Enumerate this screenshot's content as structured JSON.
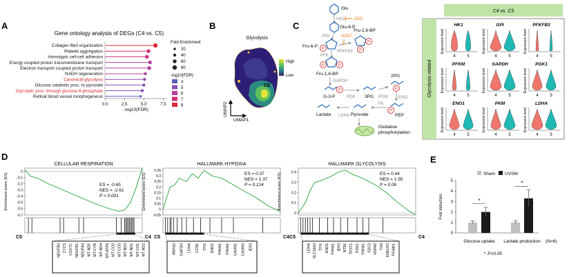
{
  "panels": {
    "A": {
      "letter": "A",
      "title": "Gene ontology analysis of DEGs (C4 vs. C5)",
      "terms": [
        {
          "label": "Collagen fibril organization",
          "value": 6.5,
          "size": 80,
          "fdr": 8,
          "highlight": false
        },
        {
          "label": "Platelet aggregation",
          "value": 5.6,
          "size": 60,
          "fdr": 7,
          "highlight": false
        },
        {
          "label": "Homotypic cell-cell adhesion",
          "value": 5.4,
          "size": 60,
          "fdr": 7,
          "highlight": false
        },
        {
          "label": "Energy coupled proton transmembrane transport",
          "value": 5.8,
          "size": 60,
          "fdr": 6,
          "highlight": false
        },
        {
          "label": "Electron transport coupled proton transport",
          "value": 5.7,
          "size": 60,
          "fdr": 6,
          "highlight": false
        },
        {
          "label": "NADH regeneration",
          "value": 5.2,
          "size": 40,
          "fdr": 6,
          "highlight": false
        },
        {
          "label": "Canonical glycolysis",
          "value": 5.1,
          "size": 40,
          "fdr": 5,
          "highlight": true
        },
        {
          "label": "Glucose catabolic proc. to pyruvate",
          "value": 5.0,
          "size": 40,
          "fdr": 5,
          "highlight": false
        },
        {
          "label": "Glycolytic proc. through glucose-6-phosphate",
          "value": 4.8,
          "size": 40,
          "fdr": 5,
          "highlight": true
        },
        {
          "label": "Retinal blood vessel morphogenesis",
          "value": 4.6,
          "size": 20,
          "fdr": 4,
          "highlight": false
        }
      ],
      "xaxis": {
        "label": "-log10(FDR)",
        "ticks": [
          "0.0",
          "2.5",
          "5.0",
          "7.5"
        ],
        "max": 8.0
      },
      "legend_size_title": "Fold Enrichment",
      "legend_sizes": [
        "20",
        "40",
        "60",
        "80"
      ],
      "legend_color_title": "-log10(FDR)",
      "legend_colors": [
        {
          "label": "4",
          "color": "#5b5fb8"
        },
        {
          "label": "5",
          "color": "#8a4fb2"
        },
        {
          "label": "6",
          "color": "#b3409e"
        },
        {
          "label": "7",
          "color": "#cf2f7a"
        },
        {
          "label": "8",
          "color": "#d92a3a"
        }
      ]
    },
    "B": {
      "letter": "B",
      "title": "Glycolysis",
      "legend_high": "High",
      "legend_low": "Low",
      "cluster_label": "C5",
      "axis_x": "UMAP1",
      "axis_y": "UMAP2"
    },
    "C": {
      "letter": "C",
      "metabolites": {
        "glu": "Glu",
        "glu6p": "Glu-6-P",
        "fru6p": "Fru-6-P",
        "fru26bp": "Fru-2,6-BP",
        "fru16bp": "Fru-1,6-BP",
        "g3p": "G-3-P",
        "p3pg": "3PG",
        "p2pg": "2PG",
        "pep": "PEP",
        "pyruvate": "Pyruvate",
        "lactate": "Lactate",
        "oxphos1": "Oxidative",
        "oxphos2": "phosphorylation"
      },
      "enzymes": {
        "hk1": "HK1",
        "tdg": "2DG",
        "az67": "AZ67",
        "pgi": "PGI",
        "pfk": "PFK",
        "pfkfb3": "PFKFB3",
        "gapdh": "GAPDH",
        "pgk": "PGK",
        "pgm": "PGM",
        "eno": "ENO",
        "pk": "PK",
        "ldha": "LDHA"
      },
      "phosphate": "P"
    },
    "violin": {
      "header": "C4 vs. C5",
      "side_label": "Glycolysis related",
      "ylabel": "Expression level",
      "groups": [
        "4",
        "5"
      ],
      "genes": [
        "HK1",
        "GPI",
        "PFKFB3",
        "PFKM",
        "GAPDH",
        "PGK1",
        "ENO1",
        "PKM",
        "LDHA"
      ],
      "colors": {
        "c4": "#f0766c",
        "c5": "#1fb9b3"
      }
    },
    "D": {
      "letter": "D",
      "ylabel": "Enrichment score (ES)",
      "left_label": "C5",
      "right_label": "C4",
      "plots": [
        {
          "title": "CELLULAR RESPIRATION",
          "es": "ES = -0.65",
          "nes": "NES = -2.61",
          "p": "P < 0.001",
          "yticks": [
            "0",
            "-0.1",
            "-0.2",
            "-0.3",
            "-0.4",
            "-0.5",
            "-0.6",
            "-0.7"
          ],
          "genes": [
            "NDUFB3",
            "CYCS",
            "COX7C",
            "NDUFB1",
            "NDUFA4",
            "MT-ND5",
            "MT-CYB",
            "MT-ND4",
            "MT-ATP8",
            "MT-CO2",
            "MT-CO3",
            "MT-ND3",
            "MT-ND1",
            "MT-CO1",
            "MT-ND2"
          ]
        },
        {
          "title": "HALLMARK HYPOXIA",
          "es": "ES = 0.37",
          "nes": "NES = 1.37",
          "p": "P = 0.124",
          "yticks": [
            "0.35",
            "0.3",
            "0.25",
            "0.2",
            "0.15",
            "0.1",
            "0.05",
            "0",
            "-0.05"
          ],
          "genes": [
            "ANXA2",
            "GAPDH",
            "LDHA",
            "CCN1",
            "TPI1",
            "ENO1",
            "P4HA1",
            "P4HA1",
            "CAVIN1",
            "CAVIN3",
            "IER3"
          ]
        },
        {
          "title": "HALLMARK GLYCOLYSIS",
          "es": "ES = 0.44",
          "nes": "NES = 1.55",
          "p": "P = 0.06",
          "yticks": [
            "0.4",
            "0.3",
            "0.2",
            "0.1",
            "0"
          ],
          "genes": [
            "LDHA",
            "SLC16A3",
            "TPI1",
            "ENO1",
            "P4HA1",
            "IER3",
            "NT5E",
            "TPST1",
            "PGK1",
            "P4HA1",
            "SDC2",
            "HSPA5",
            "TXN",
            "KDELR3",
            "PGAM1"
          ]
        }
      ]
    },
    "E": {
      "letter": "E",
      "legend": [
        "Sham",
        "UVSM"
      ],
      "ylabel": "Fold induction",
      "yticks": [
        "0",
        "1",
        "2",
        "3",
        "4",
        "5"
      ],
      "ymax": 5,
      "categories": [
        "Glucose uptake",
        "Lactate production"
      ],
      "series": [
        {
          "name": "Sham",
          "values": [
            1.0,
            1.0
          ],
          "errors": [
            0.15,
            0.15
          ],
          "color": "#bfbfbf"
        },
        {
          "name": "UVSM",
          "values": [
            2.0,
            3.3
          ],
          "errors": [
            0.45,
            0.8
          ],
          "color": "#1a1a1a"
        }
      ],
      "n_label": "(N=6)",
      "sig_mark": "*",
      "note": "*: P<0.05"
    }
  }
}
